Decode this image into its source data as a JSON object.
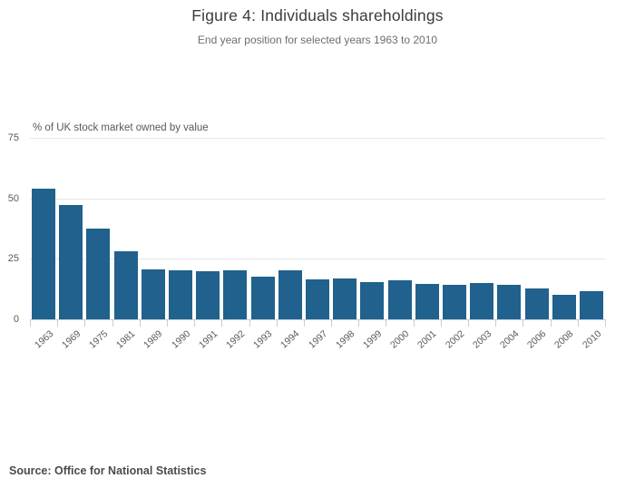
{
  "chart_data": {
    "type": "bar",
    "title": "Figure 4: Individuals shareholdings",
    "subtitle": "End year position for selected years 1963 to 2010",
    "ylabel": "% of UK stock market owned by value",
    "xlabel": "",
    "categories": [
      "1963",
      "1969",
      "1975",
      "1981",
      "1989",
      "1990",
      "1991",
      "1992",
      "1993",
      "1994",
      "1997",
      "1998",
      "1999",
      "2000",
      "2001",
      "2002",
      "2003",
      "2004",
      "2006",
      "2008",
      "2010"
    ],
    "values": [
      54.0,
      47.4,
      37.5,
      28.2,
      20.6,
      20.3,
      19.9,
      20.4,
      17.7,
      20.3,
      16.5,
      16.7,
      15.3,
      16.0,
      14.8,
      14.3,
      14.9,
      14.1,
      12.8,
      10.2,
      11.5
    ],
    "ylim": [
      0,
      75
    ],
    "yticks": [
      0,
      25,
      50,
      75
    ],
    "grid": true,
    "legend": false,
    "source": "Source: Office for National Statistics",
    "colors": {
      "bar": "#20618d",
      "gridline": "#e7e7e7",
      "axis_line": "#bccfe0",
      "title": "#3c3c3c",
      "subtitle": "#6e6e6e",
      "tick_label": "#595959"
    }
  }
}
